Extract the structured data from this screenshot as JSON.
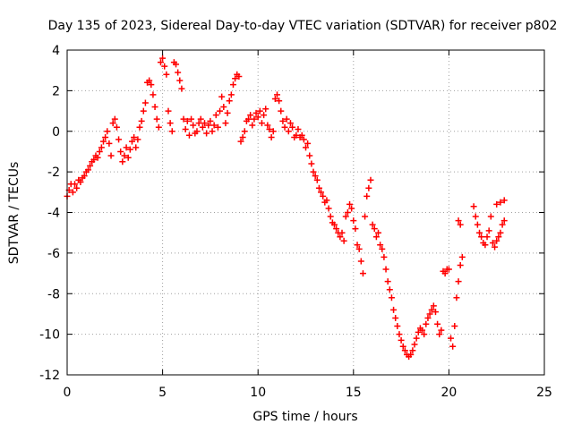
{
  "chart_data": {
    "type": "scatter",
    "title": "Day 135 of 2023, Sidereal Day-to-day VTEC variation (SDTVAR) for receiver p802",
    "xlabel": "GPS time / hours",
    "ylabel": "SDTVAR / TECUs",
    "xlim": [
      0,
      25
    ],
    "ylim": [
      -12,
      4
    ],
    "xticks": [
      "0",
      "5",
      "10",
      "15",
      "20",
      "25"
    ],
    "yticks": [
      "4",
      "2",
      "0",
      "-2",
      "-4",
      "-6",
      "-8",
      "-10",
      "-12"
    ],
    "grid": true,
    "marker": "+",
    "marker_color": "#ff0000",
    "series": [
      {
        "name": "SDTVAR",
        "points": [
          [
            0.0,
            -3.2
          ],
          [
            0.1,
            -2.9
          ],
          [
            0.2,
            -2.6
          ],
          [
            0.3,
            -3.0
          ],
          [
            0.4,
            -2.6
          ],
          [
            0.5,
            -2.8
          ],
          [
            0.6,
            -2.4
          ],
          [
            0.7,
            -2.5
          ],
          [
            0.8,
            -2.3
          ],
          [
            0.9,
            -2.2
          ],
          [
            1.0,
            -2.0
          ],
          [
            1.1,
            -1.9
          ],
          [
            1.2,
            -1.7
          ],
          [
            1.3,
            -1.5
          ],
          [
            1.4,
            -1.4
          ],
          [
            1.5,
            -1.2
          ],
          [
            1.6,
            -1.3
          ],
          [
            1.7,
            -1.0
          ],
          [
            1.8,
            -0.8
          ],
          [
            1.9,
            -0.5
          ],
          [
            2.0,
            -0.3
          ],
          [
            2.1,
            0.0
          ],
          [
            2.2,
            -0.6
          ],
          [
            2.3,
            -1.2
          ],
          [
            2.4,
            0.4
          ],
          [
            2.5,
            0.6
          ],
          [
            2.6,
            0.2
          ],
          [
            2.7,
            -0.4
          ],
          [
            2.8,
            -1.0
          ],
          [
            2.9,
            -1.5
          ],
          [
            3.0,
            -1.2
          ],
          [
            3.1,
            -0.8
          ],
          [
            3.2,
            -1.3
          ],
          [
            3.3,
            -0.9
          ],
          [
            3.4,
            -0.5
          ],
          [
            3.5,
            -0.3
          ],
          [
            3.6,
            -0.8
          ],
          [
            3.7,
            -0.4
          ],
          [
            3.8,
            0.2
          ],
          [
            3.9,
            0.5
          ],
          [
            4.0,
            1.0
          ],
          [
            4.1,
            1.4
          ],
          [
            4.2,
            2.4
          ],
          [
            4.3,
            2.5
          ],
          [
            4.4,
            2.3
          ],
          [
            4.5,
            1.8
          ],
          [
            4.6,
            1.2
          ],
          [
            4.7,
            0.6
          ],
          [
            4.8,
            0.2
          ],
          [
            4.9,
            3.4
          ],
          [
            5.0,
            3.6
          ],
          [
            5.1,
            3.2
          ],
          [
            5.2,
            2.8
          ],
          [
            5.3,
            1.0
          ],
          [
            5.4,
            0.4
          ],
          [
            5.5,
            0.0
          ],
          [
            5.6,
            3.4
          ],
          [
            5.7,
            3.3
          ],
          [
            5.8,
            2.9
          ],
          [
            5.9,
            2.5
          ],
          [
            6.0,
            2.1
          ],
          [
            6.1,
            0.6
          ],
          [
            6.2,
            0.1
          ],
          [
            6.3,
            0.5
          ],
          [
            6.4,
            -0.2
          ],
          [
            6.5,
            0.6
          ],
          [
            6.6,
            0.3
          ],
          [
            6.7,
            -0.1
          ],
          [
            6.8,
            0.0
          ],
          [
            6.9,
            0.4
          ],
          [
            7.0,
            0.6
          ],
          [
            7.1,
            0.2
          ],
          [
            7.2,
            0.4
          ],
          [
            7.3,
            -0.1
          ],
          [
            7.4,
            0.3
          ],
          [
            7.5,
            0.5
          ],
          [
            7.6,
            0.0
          ],
          [
            7.7,
            0.3
          ],
          [
            7.8,
            0.8
          ],
          [
            7.9,
            0.2
          ],
          [
            8.0,
            1.0
          ],
          [
            8.1,
            1.7
          ],
          [
            8.2,
            1.2
          ],
          [
            8.3,
            0.4
          ],
          [
            8.4,
            0.9
          ],
          [
            8.5,
            1.5
          ],
          [
            8.6,
            1.8
          ],
          [
            8.7,
            2.3
          ],
          [
            8.8,
            2.6
          ],
          [
            8.9,
            2.8
          ],
          [
            9.0,
            2.7
          ],
          [
            9.1,
            -0.5
          ],
          [
            9.2,
            -0.3
          ],
          [
            9.3,
            0.0
          ],
          [
            9.4,
            0.5
          ],
          [
            9.5,
            0.6
          ],
          [
            9.6,
            0.8
          ],
          [
            9.7,
            0.3
          ],
          [
            9.8,
            0.6
          ],
          [
            9.9,
            0.9
          ],
          [
            10.0,
            0.7
          ],
          [
            10.1,
            1.0
          ],
          [
            10.2,
            0.4
          ],
          [
            10.3,
            0.8
          ],
          [
            10.4,
            1.1
          ],
          [
            10.5,
            0.3
          ],
          [
            10.6,
            0.1
          ],
          [
            10.7,
            -0.3
          ],
          [
            10.8,
            0.0
          ],
          [
            10.9,
            1.6
          ],
          [
            11.0,
            1.8
          ],
          [
            11.1,
            1.5
          ],
          [
            11.2,
            1.0
          ],
          [
            11.3,
            0.5
          ],
          [
            11.4,
            0.2
          ],
          [
            11.5,
            0.6
          ],
          [
            11.6,
            0.0
          ],
          [
            11.7,
            0.4
          ],
          [
            11.8,
            0.2
          ],
          [
            11.9,
            -0.3
          ],
          [
            12.0,
            -0.2
          ],
          [
            12.1,
            0.1
          ],
          [
            12.2,
            -0.3
          ],
          [
            12.3,
            -0.2
          ],
          [
            12.4,
            -0.4
          ],
          [
            12.5,
            -0.8
          ],
          [
            12.6,
            -0.6
          ],
          [
            12.7,
            -1.2
          ],
          [
            12.8,
            -1.6
          ],
          [
            12.9,
            -2.0
          ],
          [
            13.0,
            -2.2
          ],
          [
            13.1,
            -2.4
          ],
          [
            13.2,
            -2.8
          ],
          [
            13.3,
            -3.0
          ],
          [
            13.4,
            -3.2
          ],
          [
            13.5,
            -3.5
          ],
          [
            13.6,
            -3.4
          ],
          [
            13.7,
            -3.8
          ],
          [
            13.8,
            -4.2
          ],
          [
            13.9,
            -4.5
          ],
          [
            14.0,
            -4.6
          ],
          [
            14.1,
            -4.8
          ],
          [
            14.2,
            -5.0
          ],
          [
            14.3,
            -5.2
          ],
          [
            14.4,
            -5.0
          ],
          [
            14.5,
            -5.4
          ],
          [
            14.6,
            -4.2
          ],
          [
            14.7,
            -4.0
          ],
          [
            14.8,
            -3.6
          ],
          [
            14.9,
            -3.8
          ],
          [
            15.0,
            -4.4
          ],
          [
            15.1,
            -4.8
          ],
          [
            15.2,
            -5.6
          ],
          [
            15.3,
            -5.8
          ],
          [
            15.4,
            -6.4
          ],
          [
            15.5,
            -7.0
          ],
          [
            15.6,
            -4.2
          ],
          [
            15.7,
            -3.2
          ],
          [
            15.8,
            -2.8
          ],
          [
            15.9,
            -2.4
          ],
          [
            16.0,
            -4.6
          ],
          [
            16.1,
            -4.8
          ],
          [
            16.2,
            -5.2
          ],
          [
            16.3,
            -5.0
          ],
          [
            16.4,
            -5.6
          ],
          [
            16.5,
            -5.8
          ],
          [
            16.6,
            -6.2
          ],
          [
            16.7,
            -6.8
          ],
          [
            16.8,
            -7.4
          ],
          [
            16.9,
            -7.8
          ],
          [
            17.0,
            -8.2
          ],
          [
            17.1,
            -8.8
          ],
          [
            17.2,
            -9.2
          ],
          [
            17.3,
            -9.6
          ],
          [
            17.4,
            -10.0
          ],
          [
            17.5,
            -10.3
          ],
          [
            17.6,
            -10.6
          ],
          [
            17.7,
            -10.8
          ],
          [
            17.8,
            -11.0
          ],
          [
            17.9,
            -11.1
          ],
          [
            18.0,
            -11.0
          ],
          [
            18.1,
            -10.8
          ],
          [
            18.2,
            -10.5
          ],
          [
            18.3,
            -10.2
          ],
          [
            18.4,
            -9.9
          ],
          [
            18.5,
            -9.7
          ],
          [
            18.6,
            -9.8
          ],
          [
            18.7,
            -10.0
          ],
          [
            18.8,
            -9.5
          ],
          [
            18.9,
            -9.2
          ],
          [
            19.0,
            -9.0
          ],
          [
            19.1,
            -8.8
          ],
          [
            19.2,
            -8.6
          ],
          [
            19.3,
            -8.9
          ],
          [
            19.4,
            -9.5
          ],
          [
            19.5,
            -10.0
          ],
          [
            19.6,
            -9.8
          ],
          [
            19.7,
            -6.9
          ],
          [
            19.8,
            -7.0
          ],
          [
            19.9,
            -6.8
          ],
          [
            20.0,
            -6.8
          ],
          [
            20.1,
            -10.2
          ],
          [
            20.2,
            -10.6
          ],
          [
            20.3,
            -9.6
          ],
          [
            20.4,
            -8.2
          ],
          [
            20.5,
            -7.4
          ],
          [
            20.6,
            -6.6
          ],
          [
            20.7,
            -6.2
          ],
          [
            20.5,
            -4.4
          ],
          [
            20.6,
            -4.6
          ],
          [
            21.3,
            -3.7
          ],
          [
            21.4,
            -4.2
          ],
          [
            21.5,
            -4.6
          ],
          [
            21.6,
            -5.0
          ],
          [
            21.7,
            -5.2
          ],
          [
            21.8,
            -5.5
          ],
          [
            21.9,
            -5.6
          ],
          [
            22.0,
            -5.2
          ],
          [
            22.1,
            -4.9
          ],
          [
            22.2,
            -4.2
          ],
          [
            22.3,
            -5.5
          ],
          [
            22.4,
            -5.7
          ],
          [
            22.5,
            -5.4
          ],
          [
            22.6,
            -5.2
          ],
          [
            22.7,
            -5.0
          ],
          [
            22.8,
            -4.6
          ],
          [
            22.9,
            -4.4
          ],
          [
            22.5,
            -3.6
          ],
          [
            22.7,
            -3.5
          ],
          [
            22.9,
            -3.4
          ]
        ]
      }
    ]
  }
}
